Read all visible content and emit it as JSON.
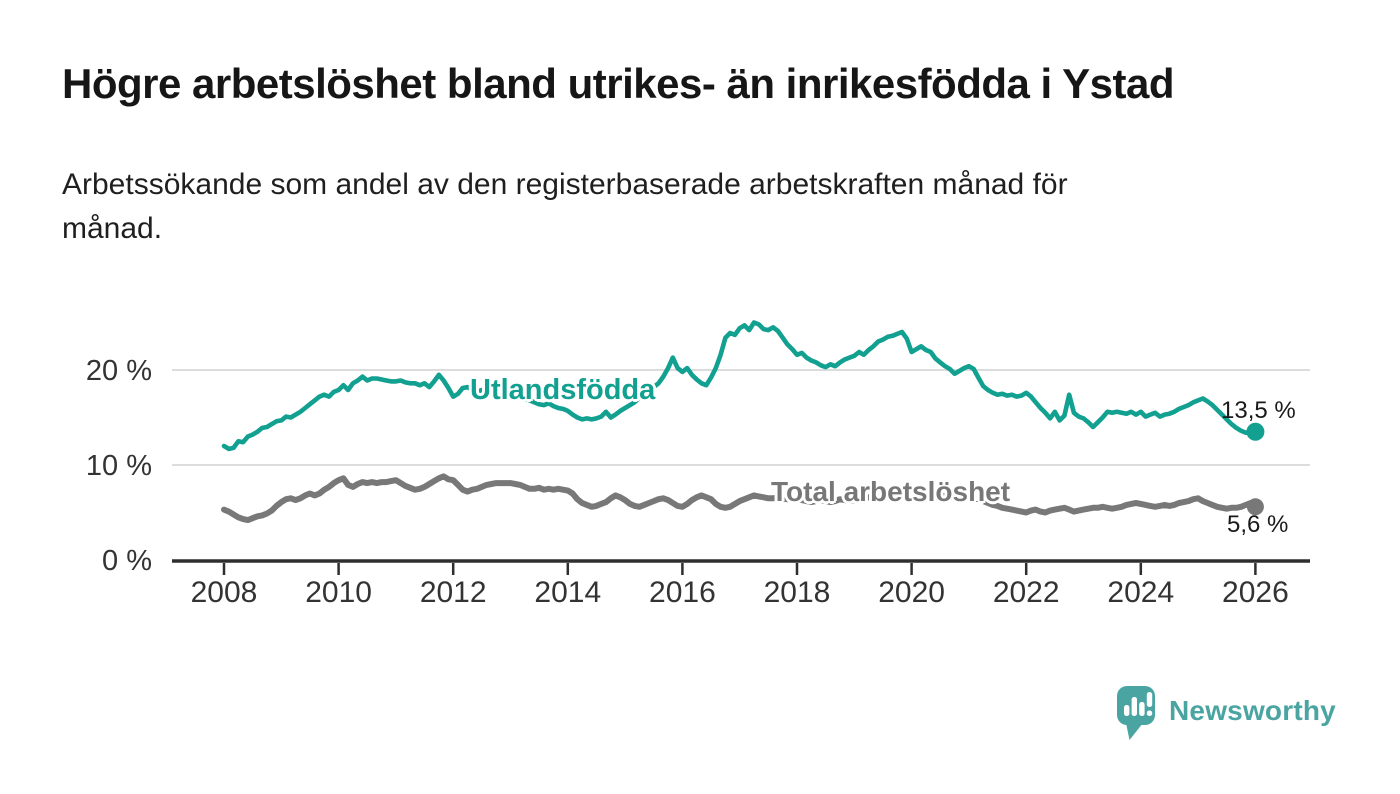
{
  "header": {
    "title": "Högre arbetslöshet bland utrikes- än inrikesfödda i Ystad",
    "subtitle_line1": "Arbetssökande som andel av den registerbaserade arbetskraften månad för",
    "subtitle_line2": "månad."
  },
  "branding": {
    "logo_text": "Newsworthy",
    "logo_color": "#4aa4a1",
    "logo_icon": "speech-bubble-bar-chart"
  },
  "colors": {
    "series_foreign": "#12a091",
    "series_total": "#787878",
    "gridline": "#dcdcdc",
    "axis": "#2e2e2e",
    "tick_text": "#333333"
  },
  "chart_data": {
    "type": "line",
    "title": "Högre arbetslöshet bland utrikes- än inrikesfödda i Ystad",
    "subtitle": "Arbetssökande som andel av den registerbaserade arbetskraften månad för månad.",
    "xlabel": "",
    "ylabel": "",
    "x_unit": "year (monthly values)",
    "y_unit": "%",
    "x_start": 2008.0,
    "x_step_years": 0.0833333,
    "x_ticks": [
      2008,
      2010,
      2012,
      2014,
      2016,
      2018,
      2020,
      2022,
      2024,
      2026
    ],
    "y_ticks": [
      0,
      10,
      20
    ],
    "y_tick_suffix": " %",
    "ylim": [
      0,
      26.5
    ],
    "xlim": [
      2007.1,
      2026.9
    ],
    "grid": "horizontal",
    "legend_position": "inline-labels",
    "series": [
      {
        "name": "Utlandsfödda",
        "color": "#12a091",
        "end_value": 13.5,
        "end_label": "13,5 %",
        "values": [
          12.0,
          11.7,
          11.8,
          12.5,
          12.4,
          13.0,
          13.2,
          13.5,
          13.9,
          14.0,
          14.3,
          14.6,
          14.7,
          15.1,
          15.0,
          15.3,
          15.6,
          16.0,
          16.4,
          16.8,
          17.2,
          17.4,
          17.2,
          17.7,
          17.9,
          18.4,
          17.9,
          18.6,
          18.9,
          19.3,
          18.9,
          19.1,
          19.1,
          19.0,
          18.9,
          18.8,
          18.8,
          18.9,
          18.7,
          18.6,
          18.6,
          18.4,
          18.6,
          18.2,
          18.8,
          19.5,
          18.9,
          18.1,
          17.2,
          17.5,
          18.1,
          18.2,
          17.9,
          17.7,
          17.9,
          17.6,
          17.4,
          17.7,
          17.9,
          17.7,
          17.7,
          17.5,
          17.2,
          17.0,
          16.8,
          16.6,
          16.4,
          16.3,
          16.5,
          16.2,
          16.0,
          15.9,
          15.7,
          15.3,
          15.0,
          14.8,
          14.9,
          14.8,
          14.9,
          15.1,
          15.6,
          15.0,
          15.3,
          15.7,
          16.0,
          16.3,
          16.6,
          17.1,
          17.5,
          17.8,
          18.2,
          18.6,
          19.3,
          20.2,
          21.3,
          20.2,
          19.8,
          20.2,
          19.5,
          19.0,
          18.6,
          18.4,
          19.2,
          20.2,
          21.6,
          23.4,
          23.9,
          23.7,
          24.4,
          24.7,
          24.2,
          25.0,
          24.8,
          24.3,
          24.2,
          24.5,
          24.1,
          23.4,
          22.7,
          22.2,
          21.6,
          21.8,
          21.3,
          21.0,
          20.8,
          20.5,
          20.3,
          20.6,
          20.4,
          20.8,
          21.1,
          21.3,
          21.5,
          21.9,
          21.6,
          22.1,
          22.5,
          23.0,
          23.2,
          23.5,
          23.6,
          23.8,
          24.0,
          23.3,
          21.9,
          22.2,
          22.5,
          22.1,
          21.9,
          21.2,
          20.8,
          20.4,
          20.1,
          19.6,
          19.9,
          20.2,
          20.4,
          20.1,
          19.2,
          18.3,
          17.9,
          17.6,
          17.4,
          17.5,
          17.3,
          17.4,
          17.2,
          17.3,
          17.6,
          17.2,
          16.6,
          16.0,
          15.5,
          14.9,
          15.6,
          14.7,
          15.2,
          17.4,
          15.5,
          15.1,
          14.9,
          14.5,
          14.0,
          14.5,
          15.0,
          15.6,
          15.5,
          15.6,
          15.5,
          15.4,
          15.6,
          15.3,
          15.6,
          15.1,
          15.3,
          15.5,
          15.1,
          15.3,
          15.4,
          15.6,
          15.9,
          16.1,
          16.3,
          16.6,
          16.8,
          17.0,
          16.7,
          16.3,
          15.8,
          15.3,
          14.8,
          14.3,
          13.9,
          13.6,
          13.4,
          13.4,
          13.5
        ]
      },
      {
        "name": "Total arbetslöshet",
        "color": "#787878",
        "end_value": 5.6,
        "end_label": "5,6 %",
        "values": [
          5.3,
          5.1,
          4.8,
          4.5,
          4.3,
          4.2,
          4.4,
          4.6,
          4.7,
          4.9,
          5.2,
          5.7,
          6.1,
          6.4,
          6.5,
          6.3,
          6.5,
          6.8,
          7.0,
          6.8,
          7.0,
          7.4,
          7.7,
          8.1,
          8.4,
          8.6,
          7.9,
          7.7,
          8.0,
          8.2,
          8.1,
          8.2,
          8.1,
          8.2,
          8.2,
          8.3,
          8.4,
          8.1,
          7.8,
          7.6,
          7.4,
          7.5,
          7.7,
          8.0,
          8.3,
          8.6,
          8.8,
          8.5,
          8.4,
          7.9,
          7.4,
          7.2,
          7.4,
          7.5,
          7.7,
          7.9,
          8.0,
          8.1,
          8.1,
          8.1,
          8.1,
          8.0,
          7.9,
          7.7,
          7.5,
          7.5,
          7.6,
          7.4,
          7.5,
          7.4,
          7.5,
          7.4,
          7.3,
          7.0,
          6.4,
          6.0,
          5.8,
          5.6,
          5.7,
          5.9,
          6.1,
          6.5,
          6.8,
          6.6,
          6.3,
          5.9,
          5.7,
          5.6,
          5.8,
          6.0,
          6.2,
          6.4,
          6.5,
          6.3,
          6.0,
          5.7,
          5.6,
          5.9,
          6.3,
          6.6,
          6.8,
          6.6,
          6.4,
          5.9,
          5.6,
          5.5,
          5.6,
          5.9,
          6.2,
          6.4,
          6.6,
          6.8,
          6.7,
          6.6,
          6.5,
          6.5,
          6.6,
          6.5,
          6.4,
          6.5,
          6.4,
          6.3,
          6.2,
          6.1,
          6.2,
          6.3,
          6.2,
          6.1,
          6.2,
          6.4,
          6.3,
          6.2,
          6.3,
          6.4,
          6.5,
          6.6,
          6.5,
          6.6,
          6.7,
          6.8,
          7.0,
          7.1,
          7.0,
          7.2,
          7.4,
          7.5,
          7.6,
          7.4,
          7.3,
          7.1,
          6.9,
          6.7,
          6.6,
          6.5,
          6.6,
          6.5,
          6.6,
          6.5,
          6.4,
          6.2,
          6.0,
          5.8,
          5.7,
          5.5,
          5.4,
          5.3,
          5.2,
          5.1,
          5.0,
          5.2,
          5.3,
          5.1,
          5.0,
          5.2,
          5.3,
          5.4,
          5.5,
          5.3,
          5.1,
          5.2,
          5.3,
          5.4,
          5.5,
          5.5,
          5.6,
          5.5,
          5.4,
          5.5,
          5.6,
          5.8,
          5.9,
          6.0,
          5.9,
          5.8,
          5.7,
          5.6,
          5.7,
          5.8,
          5.7,
          5.8,
          6.0,
          6.1,
          6.2,
          6.4,
          6.5,
          6.2,
          6.0,
          5.8,
          5.6,
          5.5,
          5.4,
          5.5,
          5.5,
          5.6,
          5.8,
          6.0,
          5.6
        ]
      }
    ]
  }
}
